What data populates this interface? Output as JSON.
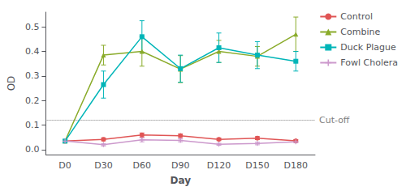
{
  "chart_data": {
    "type": "line",
    "categories": [
      "D0",
      "D30",
      "D60",
      "D90",
      "D120",
      "D150",
      "D180"
    ],
    "series": [
      {
        "name": "Control",
        "color": "#e05555",
        "marker": "circle",
        "values": [
          0.035,
          0.042,
          0.06,
          0.057,
          0.042,
          0.047,
          0.036
        ],
        "errors": [
          0.005,
          0.006,
          0.008,
          0.007,
          0.005,
          0.006,
          0.005
        ]
      },
      {
        "name": "Combine",
        "color": "#8aab2a",
        "marker": "triangle",
        "values": [
          0.035,
          0.385,
          0.4,
          0.328,
          0.4,
          0.38,
          0.47
        ],
        "errors": [
          0.005,
          0.04,
          0.06,
          0.055,
          0.045,
          0.04,
          0.07
        ]
      },
      {
        "name": "Duck Plague",
        "color": "#00b5b8",
        "marker": "square",
        "values": [
          0.035,
          0.265,
          0.46,
          0.33,
          0.415,
          0.385,
          0.36
        ],
        "errors": [
          0.005,
          0.055,
          0.065,
          0.055,
          0.06,
          0.055,
          0.04
        ]
      },
      {
        "name": "Fowl Cholera",
        "color": "#cc99cc",
        "marker": "plus",
        "values": [
          0.035,
          0.02,
          0.04,
          0.038,
          0.022,
          0.025,
          0.032
        ],
        "errors": [
          0.004,
          0.005,
          0.008,
          0.006,
          0.004,
          0.005,
          0.004
        ]
      }
    ],
    "xlabel": "Day",
    "ylabel": "OD",
    "ylim": [
      -0.02,
      0.56
    ],
    "yticks": [
      {
        "value": 0,
        "label": "0.0"
      },
      0.1,
      0.2,
      0.3,
      0.4,
      0.5
    ],
    "grid": false,
    "legend": "right",
    "annotations": [
      {
        "y": 0.118,
        "text": "Cut-off",
        "color": "gray",
        "line_style": "dotted"
      }
    ]
  }
}
